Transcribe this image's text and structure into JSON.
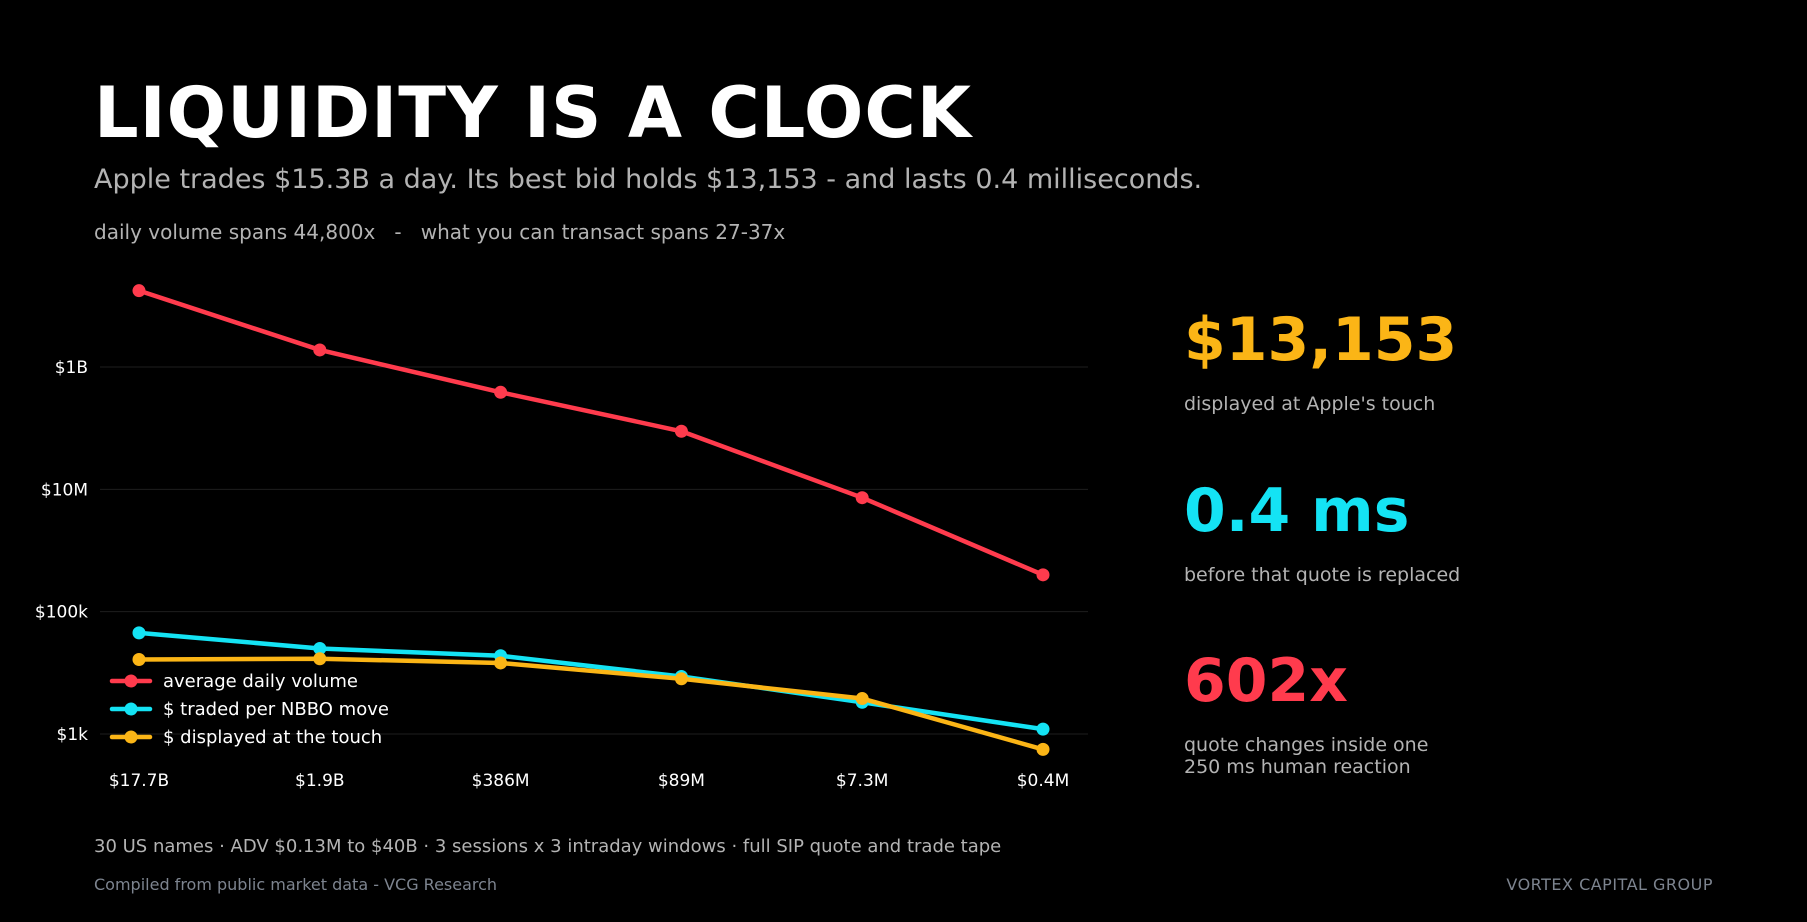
{
  "header": {
    "title": "LIQUIDITY IS A CLOCK",
    "subtitle": "Apple trades $15.3B a day. Its best bid holds $13,153 - and lasts 0.4 milliseconds.",
    "spans": "daily volume spans 44,800x   -   what you can transact spans 27-37x"
  },
  "stats": [
    {
      "value": "$13,153",
      "label": "displayed at Apple's touch",
      "color": "#FBB516"
    },
    {
      "value": "0.4 ms",
      "label": "before that quote is replaced",
      "color": "#14E3F4"
    },
    {
      "value": "602x",
      "label": "quote changes inside one\n250 ms human reaction",
      "color": "#FF3B4D"
    }
  ],
  "footer": {
    "note": "30 US names  ·  ADV $0.13M to $40B  ·  3 sessions x 3 intraday windows  ·  full SIP quote and trade tape",
    "source": "Compiled from public market data - VCG Research",
    "brand": "VORTEX CAPITAL GROUP"
  },
  "chart_data": {
    "type": "line",
    "categories": [
      "$17.7B",
      "$1.9B",
      "$386M",
      "$89M",
      "$7.3M",
      "$0.4M"
    ],
    "y_scale": "log",
    "ylim": [
      300,
      40000000000
    ],
    "yticks": [
      {
        "value": 1000,
        "label": "$1k"
      },
      {
        "value": 100000,
        "label": "$100k"
      },
      {
        "value": 10000000,
        "label": "$10M"
      },
      {
        "value": 1000000000,
        "label": "$1B"
      }
    ],
    "grid": true,
    "legend": "lower-left",
    "series": [
      {
        "name": "average daily volume",
        "color": "#FF3B4D",
        "values": [
          17700000000,
          1900000000,
          386000000,
          89000000,
          7300000,
          400000
        ]
      },
      {
        "name": "$ traded per NBBO move",
        "color": "#14E3F4",
        "values": [
          45000,
          25000,
          19000,
          8700,
          3300,
          1200
        ]
      },
      {
        "name": "$ displayed at the touch",
        "color": "#FBB516",
        "values": [
          16500,
          17000,
          14500,
          8000,
          3800,
          560
        ]
      }
    ]
  }
}
